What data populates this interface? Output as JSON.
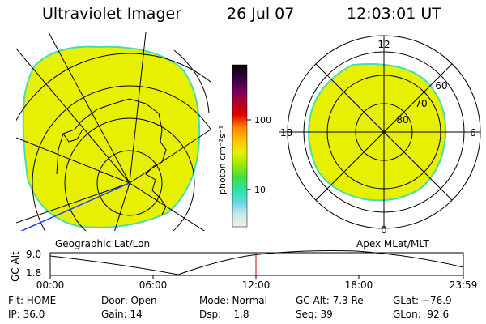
{
  "header": {
    "title": "Ultraviolet Imager",
    "date": "26 Jul 07",
    "time": "12:03:01 UT"
  },
  "colors": {
    "fill": "#e6f000",
    "edge": "#40e0b0",
    "line": "#000000",
    "coast": "#000000",
    "blue_line": "#2040ff",
    "cursor": "#e00000"
  },
  "geo_panel": {
    "label": "Geographic Lat/Lon"
  },
  "apex_panel": {
    "label": "Apex MLat/MLT",
    "mlt_labels": [
      "12",
      "18",
      "6",
      "0"
    ],
    "lat_labels": [
      "60",
      "70",
      "80"
    ]
  },
  "colorbar": {
    "unit_label": "photon cm⁻²s⁻¹",
    "ticks": [
      "100",
      "10"
    ],
    "stops": [
      "#f0f0f0",
      "#c8e8e8",
      "#60d8e0",
      "#30e0a0",
      "#40e040",
      "#a0e800",
      "#e6f000",
      "#ffc000",
      "#ff8000",
      "#e00000",
      "#b00030",
      "#700060",
      "#300040",
      "#000000"
    ]
  },
  "altitude": {
    "axis_label": "GC Alt",
    "y_ticks": [
      "9.0",
      "1.8"
    ],
    "x_ticks": [
      "00:00",
      "06:00",
      "12:00",
      "18:00",
      "23:59"
    ],
    "cursor_time": "12:03"
  },
  "info": {
    "flt": "Flt: HOME",
    "door": "Door: Open",
    "mode": "Mode: Normal",
    "gcalt": "GC Alt: 7.3 Re",
    "glat": "GLat: −76.9",
    "ip": "IP: 36.0",
    "gain": "Gain: 14",
    "dsp": "Dsp:    1.8",
    "seq": "Seq: 39",
    "glon": "GLon:  92.6"
  }
}
